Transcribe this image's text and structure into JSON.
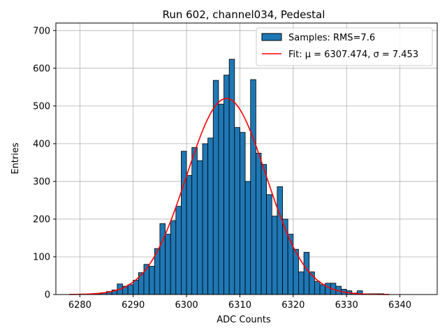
{
  "chart_data": {
    "type": "bar",
    "title": "Run 602, channel034, Pedestal",
    "xlabel": "ADC Counts",
    "ylabel": "Entries",
    "xlim": [
      6275.5,
      6347
    ],
    "ylim": [
      0,
      720
    ],
    "xticks": [
      6280,
      6290,
      6300,
      6310,
      6320,
      6330,
      6340
    ],
    "yticks": [
      0,
      100,
      200,
      300,
      400,
      500,
      600,
      700
    ],
    "grid": true,
    "legend_position": "top-right",
    "colors": {
      "bars": "#1f77b4",
      "edge": "#000000",
      "fit": "#ff0000",
      "grid": "#b0b0b0"
    },
    "histogram": {
      "name": "Samples: RMS=7.6",
      "bin_width": 1,
      "bin_starts": [
        6283,
        6284,
        6285,
        6286,
        6287,
        6288,
        6289,
        6290,
        6291,
        6292,
        6293,
        6294,
        6295,
        6296,
        6297,
        6298,
        6299,
        6300,
        6301,
        6302,
        6303,
        6304,
        6305,
        6306,
        6307,
        6308,
        6309,
        6310,
        6311,
        6312,
        6313,
        6314,
        6315,
        6316,
        6317,
        6318,
        6319,
        6320,
        6321,
        6322,
        6323,
        6324,
        6325,
        6326,
        6327,
        6328,
        6329,
        6330,
        6331,
        6332,
        6333,
        6334,
        6335,
        6336,
        6337
      ],
      "values": [
        2,
        5,
        8,
        12,
        28,
        22,
        26,
        38,
        58,
        80,
        75,
        122,
        188,
        160,
        196,
        234,
        380,
        316,
        390,
        355,
        400,
        415,
        568,
        505,
        582,
        624,
        443,
        430,
        300,
        570,
        375,
        345,
        265,
        208,
        286,
        200,
        160,
        120,
        60,
        112,
        60,
        35,
        26,
        30,
        30,
        22,
        14,
        10,
        4,
        10,
        2,
        2,
        2,
        2,
        0
      ]
    },
    "fit": {
      "name": "Fit: μ = 6307.474, σ = 7.453",
      "mu": 6307.474,
      "sigma": 7.453,
      "amplitude": 520,
      "x_range": [
        6278,
        6338
      ]
    }
  }
}
